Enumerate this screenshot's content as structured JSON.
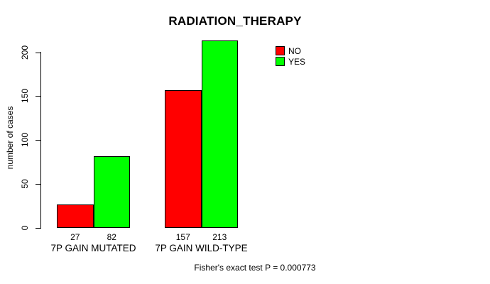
{
  "chart_data": {
    "type": "bar",
    "title": "RADIATION_THERAPY",
    "ylabel": "number of cases",
    "xlabel": "",
    "categories": [
      "7P GAIN MUTATED",
      "7P GAIN WILD-TYPE"
    ],
    "series": [
      {
        "name": "NO",
        "color": "#FF0000",
        "values": [
          27,
          157
        ]
      },
      {
        "name": "YES",
        "color": "#00FF00",
        "values": [
          82,
          213
        ]
      }
    ],
    "bar_value_labels": [
      [
        "27",
        "82"
      ],
      [
        "157",
        "213"
      ]
    ],
    "yticks": [
      0,
      50,
      100,
      150,
      200
    ],
    "ylim": [
      0,
      215
    ],
    "grid": false,
    "legend_position": "top-right",
    "footnote": "Fisher's exact test P = 0.000773"
  },
  "colors": {
    "background": "#FFFFFF",
    "axis": "#000000",
    "text": "#000000",
    "series_no": "#FF0000",
    "series_yes": "#00FF00"
  }
}
